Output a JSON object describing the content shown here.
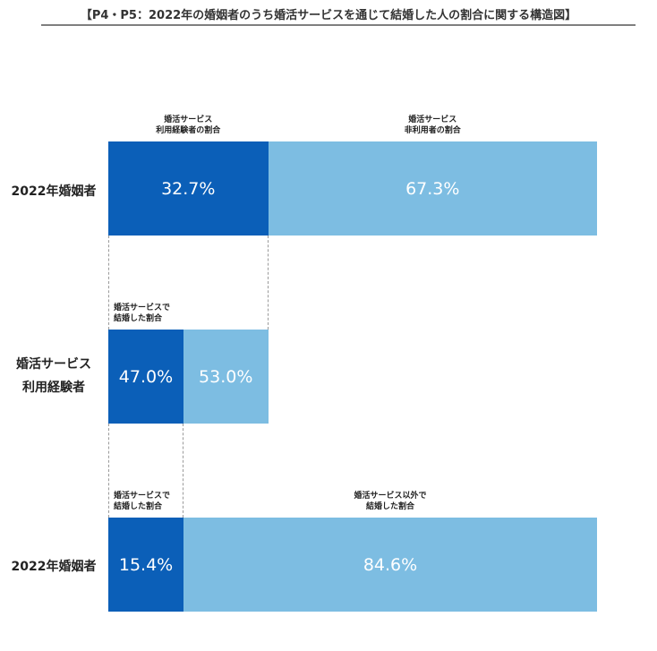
{
  "title": "【P4・P5：2022年の婚姻者のうち婚活サービスを通じて結婚した人の割合に関する構造図】",
  "chart_data": {
    "type": "bar",
    "orientation": "horizontal-stacked",
    "rows": [
      {
        "label": "2022年婚姻者",
        "segments": [
          {
            "name_lines": [
              "婚活サービス",
              "利用経験者の割合"
            ],
            "value": 32.7,
            "value_label": "32.7%",
            "color": "#0b5fb8"
          },
          {
            "name_lines": [
              "婚活サービス",
              "非利用者の割合"
            ],
            "value": 67.3,
            "value_label": "67.3%",
            "color": "#7dbde2"
          }
        ]
      },
      {
        "label_lines": [
          "婚活サービス",
          "利用経験者"
        ],
        "segments": [
          {
            "name_lines": [
              "婚活サービスで",
              "結婚した割合"
            ],
            "value": 47.0,
            "value_label": "47.0%",
            "color": "#0b5fb8"
          },
          {
            "name_lines": [],
            "value": 53.0,
            "value_label": "53.0%",
            "color": "#7dbde2"
          }
        ]
      },
      {
        "label": "2022年婚姻者",
        "segments": [
          {
            "name_lines": [
              "婚活サービスで",
              "結婚した割合"
            ],
            "value": 15.4,
            "value_label": "15.4%",
            "color": "#0b5fb8"
          },
          {
            "name_lines": [
              "婚活サービス以外で",
              "結婚した割合"
            ],
            "value": 84.6,
            "value_label": "84.6%",
            "color": "#7dbde2"
          }
        ]
      }
    ]
  }
}
